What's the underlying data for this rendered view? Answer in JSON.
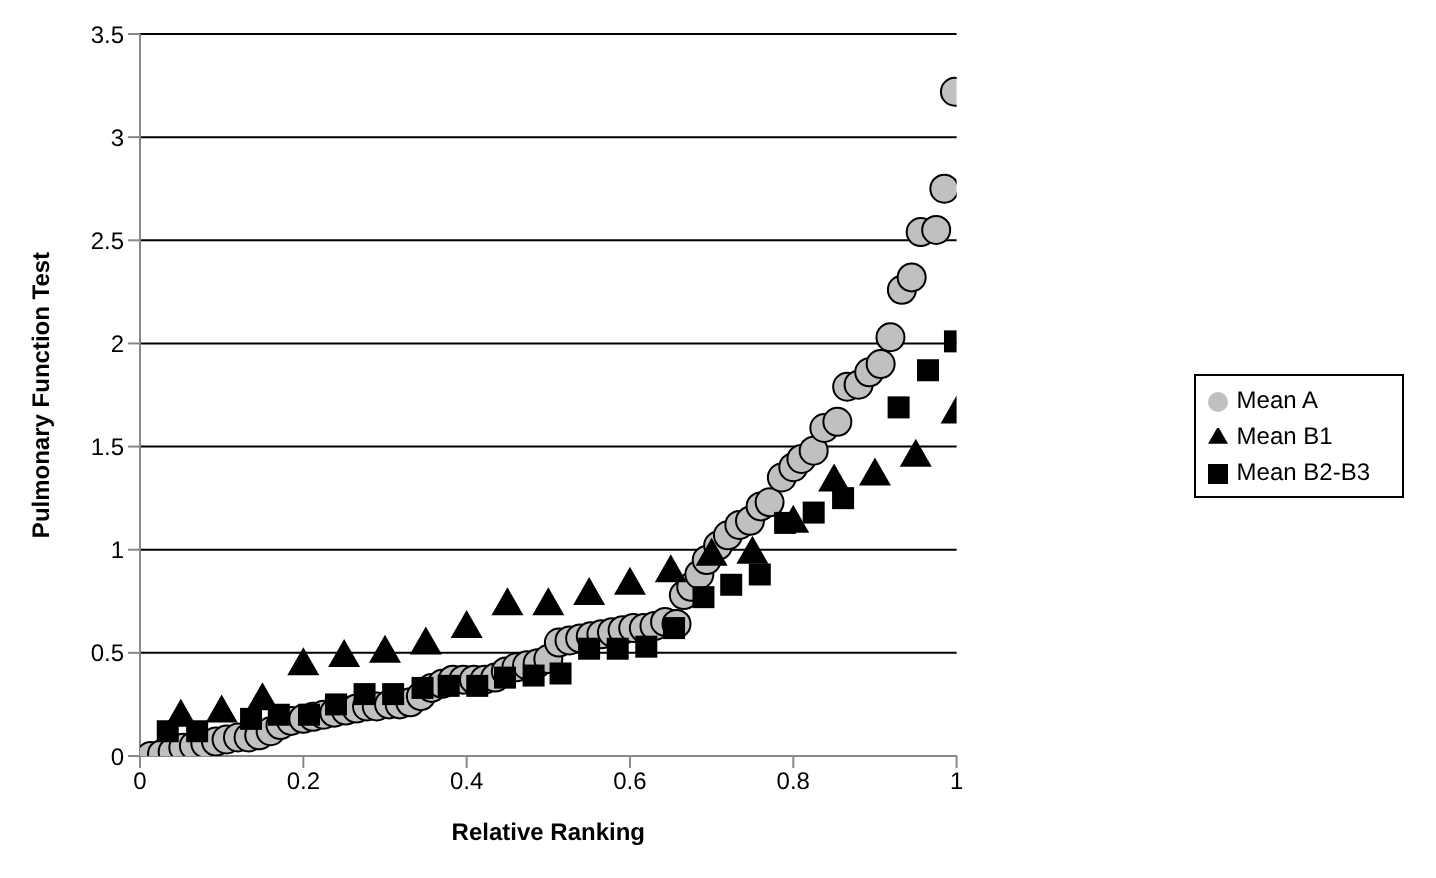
{
  "chart_data": {
    "type": "scatter",
    "xlabel": "Relative Ranking",
    "ylabel": "Pulmonary Function Test",
    "xlim": [
      0,
      1
    ],
    "xticks": [
      0,
      0.2,
      0.4,
      0.6,
      0.8,
      1
    ],
    "ylim": [
      0,
      3.5
    ],
    "yticks": [
      0,
      0.5,
      1,
      1.5,
      2,
      2.5,
      3,
      3.5
    ],
    "grid": "y",
    "legend": "right",
    "series": [
      {
        "name": "Mean A",
        "color": "#c0c0c0",
        "marker": "circle",
        "x": [
          0.013,
          0.027,
          0.04,
          0.053,
          0.066,
          0.08,
          0.093,
          0.106,
          0.12,
          0.133,
          0.146,
          0.16,
          0.172,
          0.185,
          0.2,
          0.212,
          0.225,
          0.238,
          0.252,
          0.265,
          0.278,
          0.29,
          0.305,
          0.318,
          0.331,
          0.344,
          0.357,
          0.37,
          0.383,
          0.396,
          0.409,
          0.422,
          0.435,
          0.448,
          0.461,
          0.474,
          0.487,
          0.5,
          0.513,
          0.526,
          0.539,
          0.552,
          0.565,
          0.578,
          0.591,
          0.604,
          0.617,
          0.63,
          0.643,
          0.657,
          0.666,
          0.675,
          0.685,
          0.694,
          0.708,
          0.72,
          0.734,
          0.747,
          0.76,
          0.771,
          0.786,
          0.8,
          0.81,
          0.825,
          0.838,
          0.854,
          0.866,
          0.88,
          0.893,
          0.907,
          0.919,
          0.933,
          0.945,
          0.956,
          0.975,
          0.985,
          0.998
        ],
        "values": [
          0,
          0.01,
          0.02,
          0.04,
          0.05,
          0.06,
          0.07,
          0.08,
          0.09,
          0.09,
          0.1,
          0.12,
          0.15,
          0.17,
          0.18,
          0.19,
          0.2,
          0.21,
          0.22,
          0.23,
          0.24,
          0.24,
          0.25,
          0.25,
          0.26,
          0.29,
          0.33,
          0.35,
          0.37,
          0.37,
          0.37,
          0.37,
          0.38,
          0.41,
          0.43,
          0.44,
          0.45,
          0.47,
          0.55,
          0.56,
          0.57,
          0.58,
          0.59,
          0.6,
          0.61,
          0.62,
          0.62,
          0.63,
          0.65,
          0.64,
          0.78,
          0.82,
          0.88,
          0.95,
          1.02,
          1.07,
          1.12,
          1.14,
          1.21,
          1.23,
          1.35,
          1.4,
          1.44,
          1.48,
          1.59,
          1.62,
          1.79,
          1.8,
          1.86,
          1.9,
          2.03,
          2.26,
          2.32,
          2.54,
          2.55,
          2.75,
          3.22
        ]
      },
      {
        "name": "Mean B1",
        "color": "#000000",
        "marker": "triangle",
        "x": [
          0.05,
          0.1,
          0.15,
          0.2,
          0.25,
          0.3,
          0.35,
          0.4,
          0.45,
          0.5,
          0.55,
          0.6,
          0.65,
          0.7,
          0.75,
          0.8,
          0.85,
          0.9,
          0.95,
          1
        ],
        "values": [
          0.2,
          0.22,
          0.28,
          0.45,
          0.49,
          0.51,
          0.55,
          0.63,
          0.74,
          0.74,
          0.79,
          0.84,
          0.9,
          0.98,
          0.99,
          1.14,
          1.34,
          1.37,
          1.46,
          1.67
        ]
      },
      {
        "name": "Mean B2-B3",
        "color": "#000000",
        "marker": "square",
        "x": [
          0.034,
          0.07,
          0.136,
          0.17,
          0.207,
          0.24,
          0.275,
          0.31,
          0.346,
          0.378,
          0.413,
          0.447,
          0.482,
          0.515,
          0.55,
          0.585,
          0.62,
          0.654,
          0.69,
          0.724,
          0.759,
          0.79,
          0.825,
          0.861,
          0.929,
          0.965,
          0.998
        ],
        "values": [
          0.12,
          0.12,
          0.18,
          0.2,
          0.2,
          0.25,
          0.3,
          0.3,
          0.33,
          0.34,
          0.34,
          0.38,
          0.39,
          0.4,
          0.52,
          0.52,
          0.53,
          0.62,
          0.77,
          0.83,
          0.88,
          1.13,
          1.18,
          1.25,
          1.69,
          1.87,
          2.01
        ]
      }
    ]
  }
}
